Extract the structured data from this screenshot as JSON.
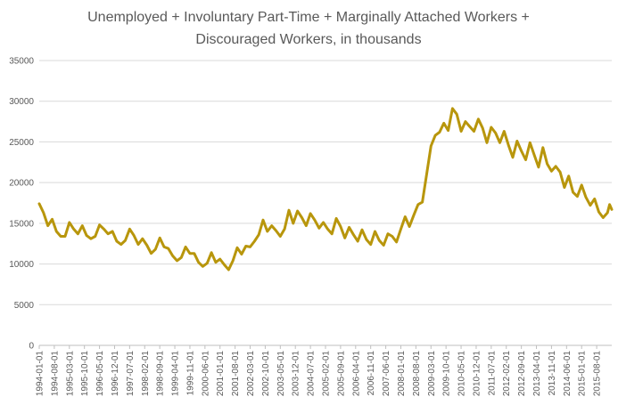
{
  "chart_data": {
    "type": "line",
    "title_line1": "Unemployed + Involuntary Part-Time + Marginally Attached Workers +",
    "title_line2": "Discouraged Workers, in thousands",
    "xlabel": "",
    "ylabel": "",
    "ylim": [
      0,
      35000
    ],
    "y_ticks": [
      0,
      5000,
      10000,
      15000,
      20000,
      25000,
      30000,
      35000
    ],
    "y_tick_labels": [
      "0",
      "5000",
      "10000",
      "15000",
      "20000",
      "25000",
      "30000",
      "35000"
    ],
    "x_range": [
      "1994-01-01",
      "2016-03-01"
    ],
    "x_tick_labels": [
      "1994-01-01",
      "1994-08-01",
      "1995-03-01",
      "1995-10-01",
      "1996-05-01",
      "1996-12-01",
      "1997-07-01",
      "1998-02-01",
      "1998-09-01",
      "1999-04-01",
      "1999-11-01",
      "2000-06-01",
      "2001-01-01",
      "2001-08-01",
      "2002-03-01",
      "2002-10-01",
      "2003-05-01",
      "2003-12-01",
      "2004-07-01",
      "2005-02-01",
      "2005-09-01",
      "2006-04-01",
      "2006-11-01",
      "2007-06-01",
      "2008-01-01",
      "2008-08-01",
      "2009-03-01",
      "2009-10-01",
      "2010-05-01",
      "2010-12-01",
      "2011-07-01",
      "2012-02-01",
      "2012-09-01",
      "2013-04-01",
      "2013-11-01",
      "2014-06-01",
      "2015-01-01",
      "2015-08-01"
    ],
    "grid": true,
    "legend": "none",
    "color": "#b8960c",
    "series": [
      {
        "points": [
          [
            "1994-01-01",
            17400
          ],
          [
            "1994-03-01",
            16300
          ],
          [
            "1994-05-01",
            14700
          ],
          [
            "1994-07-01",
            15500
          ],
          [
            "1994-09-01",
            14000
          ],
          [
            "1994-11-01",
            13400
          ],
          [
            "1995-01-01",
            13400
          ],
          [
            "1995-03-01",
            15100
          ],
          [
            "1995-05-01",
            14300
          ],
          [
            "1995-07-01",
            13700
          ],
          [
            "1995-09-01",
            14700
          ],
          [
            "1995-11-01",
            13500
          ],
          [
            "1996-01-01",
            13100
          ],
          [
            "1996-03-01",
            13400
          ],
          [
            "1996-05-01",
            14800
          ],
          [
            "1996-07-01",
            14300
          ],
          [
            "1996-09-01",
            13700
          ],
          [
            "1996-11-01",
            14000
          ],
          [
            "1997-01-01",
            12800
          ],
          [
            "1997-03-01",
            12400
          ],
          [
            "1997-05-01",
            12900
          ],
          [
            "1997-07-01",
            14300
          ],
          [
            "1997-09-01",
            13500
          ],
          [
            "1997-11-01",
            12400
          ],
          [
            "1998-01-01",
            13100
          ],
          [
            "1998-03-01",
            12300
          ],
          [
            "1998-05-01",
            11300
          ],
          [
            "1998-07-01",
            11800
          ],
          [
            "1998-09-01",
            13200
          ],
          [
            "1998-11-01",
            12100
          ],
          [
            "1999-01-01",
            11900
          ],
          [
            "1999-03-01",
            11000
          ],
          [
            "1999-05-01",
            10400
          ],
          [
            "1999-07-01",
            10800
          ],
          [
            "1999-09-01",
            12100
          ],
          [
            "1999-11-01",
            11300
          ],
          [
            "2000-01-01",
            11300
          ],
          [
            "2000-03-01",
            10200
          ],
          [
            "2000-05-01",
            9700
          ],
          [
            "2000-07-01",
            10100
          ],
          [
            "2000-09-01",
            11400
          ],
          [
            "2000-11-01",
            10200
          ],
          [
            "2001-01-01",
            10600
          ],
          [
            "2001-03-01",
            9900
          ],
          [
            "2001-05-01",
            9300
          ],
          [
            "2001-07-01",
            10400
          ],
          [
            "2001-09-01",
            12000
          ],
          [
            "2001-11-01",
            11200
          ],
          [
            "2002-01-01",
            12200
          ],
          [
            "2002-03-01",
            12100
          ],
          [
            "2002-05-01",
            12800
          ],
          [
            "2002-07-01",
            13600
          ],
          [
            "2002-09-01",
            15400
          ],
          [
            "2002-11-01",
            14000
          ],
          [
            "2003-01-01",
            14700
          ],
          [
            "2003-03-01",
            14100
          ],
          [
            "2003-05-01",
            13400
          ],
          [
            "2003-07-01",
            14300
          ],
          [
            "2003-09-01",
            16600
          ],
          [
            "2003-11-01",
            15000
          ],
          [
            "2004-01-01",
            16500
          ],
          [
            "2004-03-01",
            15700
          ],
          [
            "2004-05-01",
            14700
          ],
          [
            "2004-07-01",
            16200
          ],
          [
            "2004-09-01",
            15400
          ],
          [
            "2004-11-01",
            14400
          ],
          [
            "2005-01-01",
            15100
          ],
          [
            "2005-03-01",
            14300
          ],
          [
            "2005-05-01",
            13700
          ],
          [
            "2005-07-01",
            15600
          ],
          [
            "2005-09-01",
            14600
          ],
          [
            "2005-11-01",
            13200
          ],
          [
            "2006-01-01",
            14500
          ],
          [
            "2006-03-01",
            13600
          ],
          [
            "2006-05-01",
            12800
          ],
          [
            "2006-07-01",
            14200
          ],
          [
            "2006-09-01",
            13000
          ],
          [
            "2006-11-01",
            12400
          ],
          [
            "2007-01-01",
            14000
          ],
          [
            "2007-03-01",
            12900
          ],
          [
            "2007-05-01",
            12300
          ],
          [
            "2007-07-01",
            13700
          ],
          [
            "2007-09-01",
            13400
          ],
          [
            "2007-11-01",
            12700
          ],
          [
            "2008-01-01",
            14300
          ],
          [
            "2008-03-01",
            15800
          ],
          [
            "2008-05-01",
            14600
          ],
          [
            "2008-07-01",
            16000
          ],
          [
            "2008-09-01",
            17300
          ],
          [
            "2008-11-01",
            17600
          ],
          [
            "2009-01-01",
            21000
          ],
          [
            "2009-03-01",
            24500
          ],
          [
            "2009-05-01",
            25800
          ],
          [
            "2009-07-01",
            26200
          ],
          [
            "2009-09-01",
            27300
          ],
          [
            "2009-11-01",
            26400
          ],
          [
            "2010-01-01",
            29100
          ],
          [
            "2010-03-01",
            28400
          ],
          [
            "2010-05-01",
            26300
          ],
          [
            "2010-07-01",
            27500
          ],
          [
            "2010-09-01",
            26900
          ],
          [
            "2010-11-01",
            26300
          ],
          [
            "2011-01-01",
            27800
          ],
          [
            "2011-03-01",
            26700
          ],
          [
            "2011-05-01",
            24900
          ],
          [
            "2011-07-01",
            26800
          ],
          [
            "2011-09-01",
            26100
          ],
          [
            "2011-11-01",
            24900
          ],
          [
            "2012-01-01",
            26300
          ],
          [
            "2012-03-01",
            24600
          ],
          [
            "2012-05-01",
            23100
          ],
          [
            "2012-07-01",
            25100
          ],
          [
            "2012-09-01",
            23900
          ],
          [
            "2012-11-01",
            22800
          ],
          [
            "2013-01-01",
            24900
          ],
          [
            "2013-03-01",
            23400
          ],
          [
            "2013-05-01",
            21900
          ],
          [
            "2013-07-01",
            24300
          ],
          [
            "2013-09-01",
            22300
          ],
          [
            "2013-11-01",
            21400
          ],
          [
            "2014-01-01",
            22000
          ],
          [
            "2014-03-01",
            21300
          ],
          [
            "2014-05-01",
            19400
          ],
          [
            "2014-07-01",
            20800
          ],
          [
            "2014-09-01",
            18800
          ],
          [
            "2014-11-01",
            18300
          ],
          [
            "2015-01-01",
            19700
          ],
          [
            "2015-03-01",
            18200
          ],
          [
            "2015-05-01",
            17200
          ],
          [
            "2015-07-01",
            18000
          ],
          [
            "2015-09-01",
            16400
          ],
          [
            "2015-11-01",
            15700
          ],
          [
            "2016-01-01",
            16300
          ],
          [
            "2016-02-01",
            17300
          ],
          [
            "2016-03-01",
            16700
          ]
        ]
      }
    ]
  }
}
